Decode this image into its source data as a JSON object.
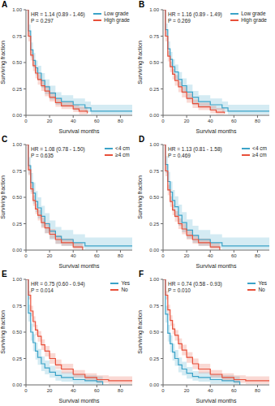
{
  "chart_data": [
    {
      "type": "line",
      "title": "A",
      "x_label": "Survival months",
      "y_label": "Surviving fraction",
      "xlim": [
        0,
        90
      ],
      "ylim": [
        0,
        1
      ],
      "xticks": [
        0,
        20,
        40,
        60,
        80
      ],
      "yticks": [
        {
          "value": 0,
          "label": "0.00"
        },
        {
          "value": 0.25,
          "label": "0.25"
        },
        {
          "value": 0.5,
          "label": "0.50"
        },
        {
          "value": 0.75,
          "label": "0.75"
        },
        {
          "value": 1,
          "label": "1.00"
        }
      ],
      "legend": "upper right",
      "annotations": [
        "HR = 1.14 (0.89 - 1.46)",
        "P = 0.297"
      ],
      "series": [
        {
          "name": "Low grade",
          "color": "#3ba3c8",
          "x": [
            0,
            2,
            4,
            6,
            8,
            10,
            13,
            16,
            20,
            25,
            30,
            40,
            50,
            55,
            90
          ],
          "values": [
            1,
            0.8,
            0.62,
            0.52,
            0.45,
            0.4,
            0.33,
            0.27,
            0.21,
            0.16,
            0.13,
            0.1,
            0.07,
            0.04,
            0.04
          ],
          "ci_lower": [
            1,
            0.74,
            0.55,
            0.45,
            0.38,
            0.33,
            0.26,
            0.2,
            0.15,
            0.1,
            0.08,
            0.05,
            0.03,
            0.01,
            0.01
          ],
          "ci_upper": [
            1,
            0.86,
            0.69,
            0.59,
            0.52,
            0.47,
            0.4,
            0.34,
            0.28,
            0.22,
            0.19,
            0.16,
            0.13,
            0.1,
            0.1
          ]
        },
        {
          "name": "High grade",
          "color": "#e8503a",
          "x": [
            0,
            2,
            4,
            6,
            8,
            10,
            13,
            16,
            20,
            25,
            30,
            40,
            45,
            52
          ],
          "values": [
            1,
            0.75,
            0.57,
            0.47,
            0.4,
            0.34,
            0.28,
            0.23,
            0.17,
            0.12,
            0.09,
            0.06,
            0.04,
            0.02
          ],
          "ci_lower": [
            1,
            0.7,
            0.52,
            0.42,
            0.35,
            0.29,
            0.23,
            0.18,
            0.13,
            0.08,
            0.06,
            0.03,
            0.01,
            0
          ],
          "ci_upper": [
            1,
            0.8,
            0.62,
            0.52,
            0.45,
            0.39,
            0.33,
            0.28,
            0.22,
            0.16,
            0.13,
            0.1,
            0.08,
            0.06
          ]
        }
      ]
    },
    {
      "type": "line",
      "title": "B",
      "x_label": "Survival months",
      "y_label": "Surviving fraction",
      "xlim": [
        0,
        90
      ],
      "ylim": [
        0,
        1
      ],
      "xticks": [
        0,
        20,
        40,
        60,
        80
      ],
      "yticks": [
        {
          "value": 0,
          "label": "0.00"
        },
        {
          "value": 0.25,
          "label": "0.25"
        },
        {
          "value": 0.5,
          "label": "0.50"
        },
        {
          "value": 0.75,
          "label": "0.75"
        },
        {
          "value": 1,
          "label": "1.00"
        }
      ],
      "legend": "upper right",
      "annotations": [
        "HR = 1.16 (0.89 - 1.49)",
        "P = 0.269"
      ],
      "series": [
        {
          "name": "Low grade",
          "color": "#3ba3c8",
          "x": [
            0,
            2,
            4,
            6,
            8,
            10,
            13,
            16,
            20,
            25,
            30,
            40,
            50,
            55,
            90
          ],
          "values": [
            1,
            0.81,
            0.63,
            0.53,
            0.46,
            0.41,
            0.34,
            0.28,
            0.22,
            0.17,
            0.13,
            0.1,
            0.07,
            0.04,
            0.04
          ],
          "ci_lower": [
            1,
            0.75,
            0.56,
            0.46,
            0.39,
            0.34,
            0.27,
            0.21,
            0.15,
            0.1,
            0.08,
            0.05,
            0.03,
            0.01,
            0.01
          ],
          "ci_upper": [
            1,
            0.87,
            0.7,
            0.6,
            0.53,
            0.48,
            0.41,
            0.35,
            0.29,
            0.23,
            0.19,
            0.16,
            0.13,
            0.1,
            0.1
          ]
        },
        {
          "name": "High grade",
          "color": "#e8503a",
          "x": [
            0,
            2,
            4,
            6,
            8,
            10,
            13,
            16,
            20,
            25,
            30,
            40,
            45,
            52
          ],
          "values": [
            1,
            0.75,
            0.56,
            0.46,
            0.39,
            0.33,
            0.27,
            0.22,
            0.16,
            0.11,
            0.08,
            0.05,
            0.03,
            0.02
          ],
          "ci_lower": [
            1,
            0.7,
            0.51,
            0.41,
            0.34,
            0.28,
            0.22,
            0.17,
            0.12,
            0.07,
            0.05,
            0.02,
            0.01,
            0
          ],
          "ci_upper": [
            1,
            0.8,
            0.61,
            0.51,
            0.44,
            0.38,
            0.32,
            0.27,
            0.21,
            0.15,
            0.12,
            0.09,
            0.07,
            0.06
          ]
        }
      ]
    },
    {
      "type": "line",
      "title": "C",
      "x_label": "Survival months",
      "y_label": "Surviving fraction",
      "xlim": [
        0,
        90
      ],
      "ylim": [
        0,
        1
      ],
      "xticks": [
        0,
        20,
        40,
        60,
        80
      ],
      "yticks": [
        {
          "value": 0,
          "label": "0.00"
        },
        {
          "value": 0.25,
          "label": "0.25"
        },
        {
          "value": 0.5,
          "label": "0.50"
        },
        {
          "value": 0.75,
          "label": "0.75"
        },
        {
          "value": 1,
          "label": "1.00"
        }
      ],
      "legend": "upper right",
      "annotations": [
        "HR = 1.08 (0.78 - 1.50)",
        "P = 0.635"
      ],
      "series": [
        {
          "name": "<4 cm",
          "color": "#3ba3c8",
          "x": [
            0,
            2,
            4,
            6,
            8,
            10,
            13,
            16,
            20,
            25,
            30,
            40,
            50,
            90
          ],
          "values": [
            1,
            0.8,
            0.64,
            0.54,
            0.46,
            0.4,
            0.32,
            0.25,
            0.18,
            0.13,
            0.1,
            0.07,
            0.04,
            0.04
          ],
          "ci_lower": [
            1,
            0.72,
            0.55,
            0.44,
            0.36,
            0.3,
            0.22,
            0.16,
            0.1,
            0.06,
            0.04,
            0.02,
            0.01,
            0.01
          ],
          "ci_upper": [
            1,
            0.88,
            0.73,
            0.64,
            0.56,
            0.5,
            0.42,
            0.35,
            0.28,
            0.22,
            0.19,
            0.15,
            0.12,
            0.12
          ]
        },
        {
          "name": "≥4 cm",
          "color": "#e8503a",
          "x": [
            0,
            2,
            4,
            6,
            8,
            10,
            13,
            16,
            20,
            25,
            30,
            40,
            48
          ],
          "values": [
            1,
            0.76,
            0.58,
            0.47,
            0.39,
            0.33,
            0.26,
            0.21,
            0.15,
            0.1,
            0.07,
            0.03,
            0
          ],
          "ci_lower": [
            1,
            0.71,
            0.53,
            0.42,
            0.34,
            0.28,
            0.21,
            0.16,
            0.11,
            0.06,
            0.04,
            0.01,
            0
          ],
          "ci_upper": [
            1,
            0.81,
            0.63,
            0.52,
            0.44,
            0.38,
            0.31,
            0.26,
            0.2,
            0.14,
            0.11,
            0.07,
            0.04
          ]
        }
      ]
    },
    {
      "type": "line",
      "title": "D",
      "x_label": "Survival months",
      "y_label": "Surviving fraction",
      "xlim": [
        0,
        90
      ],
      "ylim": [
        0,
        1
      ],
      "xticks": [
        0,
        20,
        40,
        60,
        80
      ],
      "yticks": [
        {
          "value": 0,
          "label": "0.00"
        },
        {
          "value": 0.25,
          "label": "0.25"
        },
        {
          "value": 0.5,
          "label": "0.50"
        },
        {
          "value": 0.75,
          "label": "0.75"
        },
        {
          "value": 1,
          "label": "1.00"
        }
      ],
      "legend": "upper right",
      "annotations": [
        "HR = 1.13 (0.81 - 1.58)",
        "P = 0.469"
      ],
      "series": [
        {
          "name": "<4 cm",
          "color": "#3ba3c8",
          "x": [
            0,
            2,
            4,
            6,
            8,
            10,
            13,
            16,
            20,
            25,
            30,
            40,
            50,
            90
          ],
          "values": [
            1,
            0.81,
            0.65,
            0.55,
            0.47,
            0.41,
            0.33,
            0.26,
            0.19,
            0.14,
            0.1,
            0.07,
            0.04,
            0.04
          ],
          "ci_lower": [
            1,
            0.73,
            0.56,
            0.45,
            0.37,
            0.31,
            0.23,
            0.17,
            0.11,
            0.07,
            0.04,
            0.02,
            0.01,
            0.01
          ],
          "ci_upper": [
            1,
            0.89,
            0.74,
            0.65,
            0.57,
            0.51,
            0.43,
            0.36,
            0.29,
            0.23,
            0.19,
            0.15,
            0.12,
            0.12
          ]
        },
        {
          "name": "≥4 cm",
          "color": "#e8503a",
          "x": [
            0,
            2,
            4,
            6,
            8,
            10,
            13,
            16,
            20,
            25,
            30,
            40,
            48
          ],
          "values": [
            1,
            0.75,
            0.57,
            0.46,
            0.38,
            0.32,
            0.25,
            0.2,
            0.14,
            0.1,
            0.07,
            0.03,
            0
          ],
          "ci_lower": [
            1,
            0.7,
            0.52,
            0.41,
            0.33,
            0.27,
            0.2,
            0.15,
            0.1,
            0.06,
            0.04,
            0.01,
            0
          ],
          "ci_upper": [
            1,
            0.8,
            0.62,
            0.51,
            0.43,
            0.37,
            0.3,
            0.25,
            0.19,
            0.14,
            0.11,
            0.07,
            0.04
          ]
        }
      ]
    },
    {
      "type": "line",
      "title": "E",
      "x_label": "Survival months",
      "y_label": "Surviving fraction",
      "xlim": [
        0,
        90
      ],
      "ylim": [
        0,
        1
      ],
      "xticks": [
        0,
        20,
        40,
        60,
        80
      ],
      "yticks": [
        {
          "value": 0,
          "label": "0.00"
        },
        {
          "value": 0.25,
          "label": "0.25"
        },
        {
          "value": 0.5,
          "label": "0.50"
        },
        {
          "value": 0.75,
          "label": "0.75"
        },
        {
          "value": 1,
          "label": "1.00"
        }
      ],
      "legend": "upper right",
      "annotations": [
        "HR = 0.75 (0.60 - 0.94)",
        "P = 0.014"
      ],
      "series": [
        {
          "name": "Yes",
          "color": "#3ba3c8",
          "x": [
            0,
            2,
            4,
            6,
            8,
            10,
            13,
            16,
            20,
            25,
            30,
            40,
            50,
            60,
            65
          ],
          "values": [
            1,
            0.68,
            0.5,
            0.4,
            0.32,
            0.26,
            0.2,
            0.16,
            0.12,
            0.09,
            0.07,
            0.05,
            0.04,
            0.03,
            0
          ],
          "ci_lower": [
            1,
            0.6,
            0.42,
            0.32,
            0.24,
            0.19,
            0.13,
            0.1,
            0.07,
            0.04,
            0.03,
            0.01,
            0.01,
            0,
            0
          ],
          "ci_upper": [
            1,
            0.76,
            0.58,
            0.48,
            0.4,
            0.34,
            0.27,
            0.23,
            0.18,
            0.14,
            0.12,
            0.1,
            0.09,
            0.08,
            0.05
          ]
        },
        {
          "name": "No",
          "color": "#e8503a",
          "x": [
            0,
            2,
            4,
            6,
            8,
            10,
            13,
            16,
            20,
            25,
            30,
            40,
            50,
            60,
            70,
            90
          ],
          "values": [
            1,
            0.85,
            0.7,
            0.6,
            0.52,
            0.46,
            0.38,
            0.32,
            0.25,
            0.19,
            0.15,
            0.1,
            0.07,
            0.05,
            0.04,
            0.04
          ],
          "ci_lower": [
            1,
            0.81,
            0.65,
            0.55,
            0.47,
            0.41,
            0.33,
            0.27,
            0.2,
            0.15,
            0.11,
            0.07,
            0.04,
            0.02,
            0.01,
            0.01
          ],
          "ci_upper": [
            1,
            0.89,
            0.75,
            0.65,
            0.57,
            0.51,
            0.43,
            0.37,
            0.3,
            0.24,
            0.2,
            0.14,
            0.11,
            0.09,
            0.08,
            0.08
          ]
        }
      ]
    },
    {
      "type": "line",
      "title": "F",
      "x_label": "Survival months",
      "y_label": "Surviving fraction",
      "xlim": [
        0,
        90
      ],
      "ylim": [
        0,
        1
      ],
      "xticks": [
        0,
        20,
        40,
        60,
        80
      ],
      "yticks": [
        {
          "value": 0,
          "label": "0.00"
        },
        {
          "value": 0.25,
          "label": "0.25"
        },
        {
          "value": 0.5,
          "label": "0.50"
        },
        {
          "value": 0.75,
          "label": "0.75"
        },
        {
          "value": 1,
          "label": "1.00"
        }
      ],
      "legend": "upper right",
      "annotations": [
        "HR = 0.74 (0.58 - 0.93)",
        "P = 0.010"
      ],
      "series": [
        {
          "name": "Yes",
          "color": "#3ba3c8",
          "x": [
            0,
            2,
            4,
            6,
            8,
            10,
            13,
            16,
            20,
            25,
            30,
            40,
            50,
            60,
            65
          ],
          "values": [
            1,
            0.67,
            0.49,
            0.39,
            0.31,
            0.25,
            0.19,
            0.15,
            0.11,
            0.08,
            0.07,
            0.05,
            0.04,
            0.03,
            0
          ],
          "ci_lower": [
            1,
            0.59,
            0.41,
            0.31,
            0.23,
            0.18,
            0.12,
            0.09,
            0.06,
            0.04,
            0.03,
            0.01,
            0.01,
            0,
            0
          ],
          "ci_upper": [
            1,
            0.75,
            0.57,
            0.47,
            0.39,
            0.33,
            0.26,
            0.22,
            0.17,
            0.13,
            0.12,
            0.1,
            0.09,
            0.08,
            0.05
          ]
        },
        {
          "name": "No",
          "color": "#e8503a",
          "x": [
            0,
            2,
            4,
            6,
            8,
            10,
            13,
            16,
            20,
            25,
            30,
            40,
            50,
            60,
            70,
            90
          ],
          "values": [
            1,
            0.85,
            0.71,
            0.61,
            0.53,
            0.47,
            0.39,
            0.33,
            0.26,
            0.2,
            0.15,
            0.1,
            0.07,
            0.05,
            0.04,
            0.04
          ],
          "ci_lower": [
            1,
            0.81,
            0.66,
            0.56,
            0.48,
            0.42,
            0.34,
            0.28,
            0.21,
            0.15,
            0.11,
            0.07,
            0.04,
            0.02,
            0.01,
            0.01
          ],
          "ci_upper": [
            1,
            0.89,
            0.76,
            0.66,
            0.58,
            0.52,
            0.44,
            0.38,
            0.31,
            0.25,
            0.2,
            0.14,
            0.11,
            0.09,
            0.08,
            0.08
          ]
        }
      ]
    }
  ]
}
